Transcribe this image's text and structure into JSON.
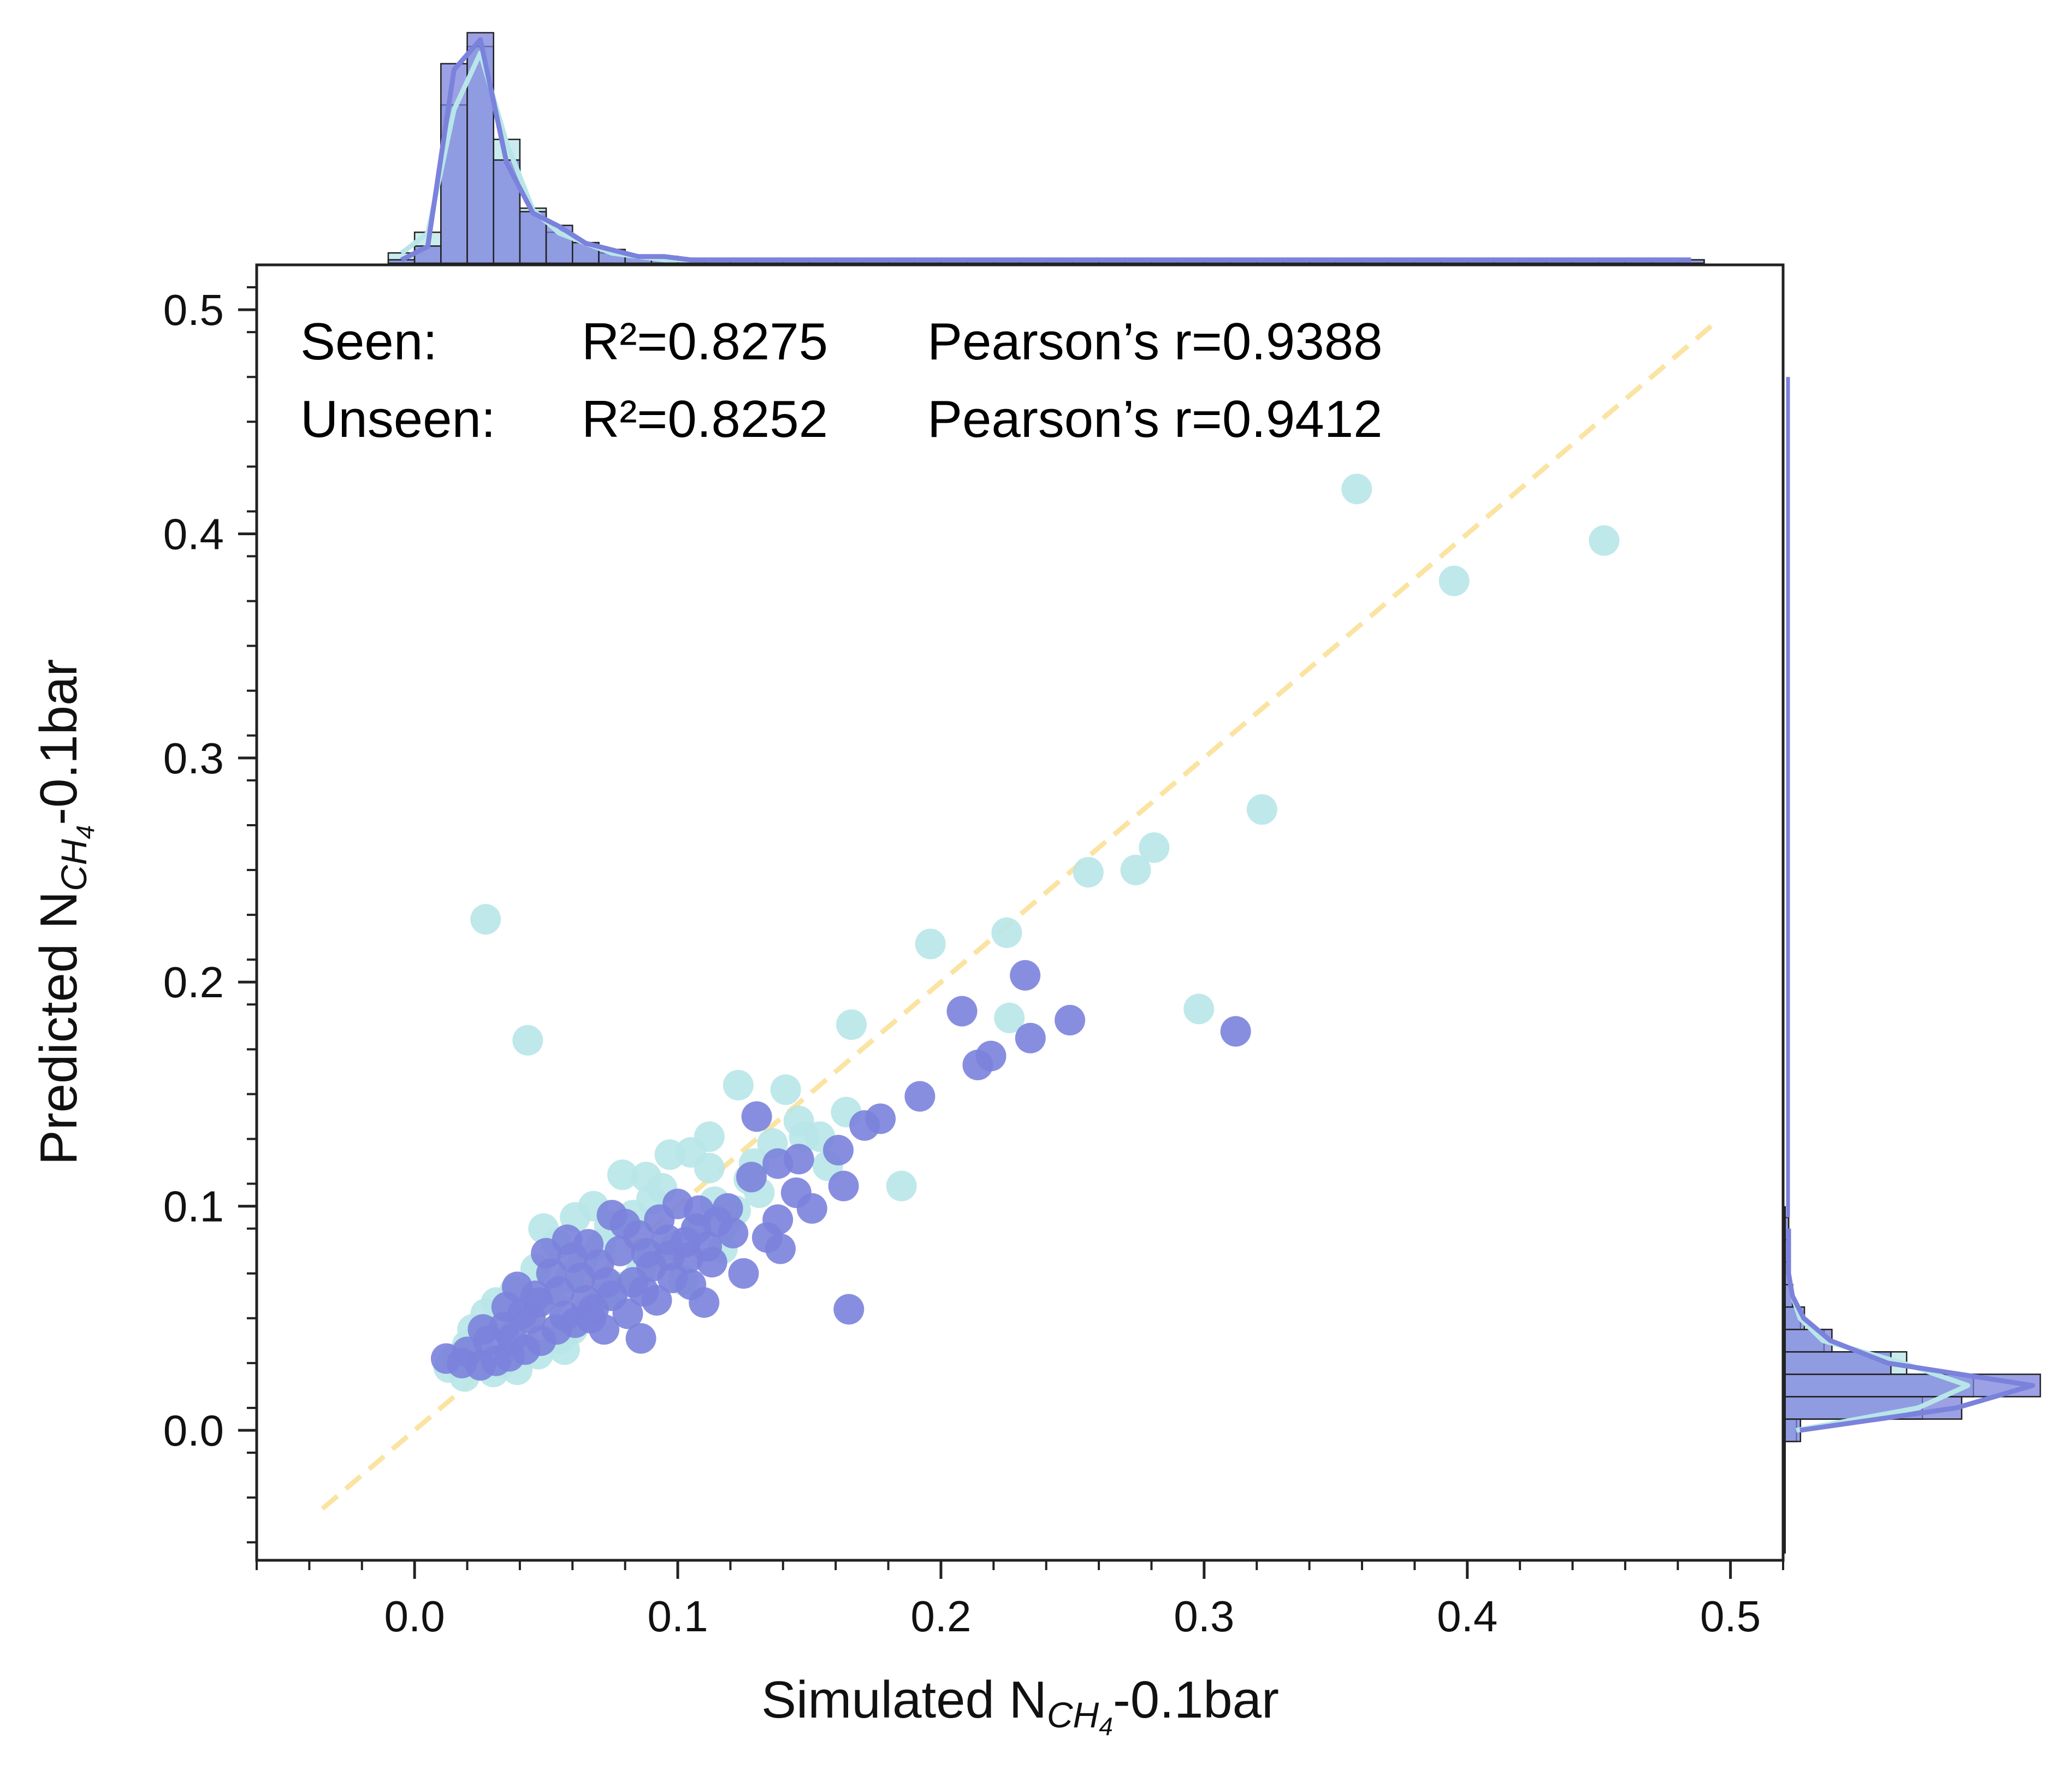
{
  "chart_data": {
    "type": "scatter",
    "title": "",
    "xlabel": {
      "prefix": "Simulated N",
      "sub": "CH",
      "subsub": "4",
      "suffix": "-0.1bar"
    },
    "ylabel": {
      "prefix": "Predicted N",
      "sub": "CH",
      "subsub": "4",
      "suffix": "-0.1bar"
    },
    "xlim": [
      -0.06,
      0.52
    ],
    "ylim": [
      -0.058,
      0.52
    ],
    "xticks": [
      0.0,
      0.1,
      0.2,
      0.3,
      0.4,
      0.5
    ],
    "xtick_labels": [
      "0.0",
      "0.1",
      "0.2",
      "0.3",
      "0.4",
      "0.5"
    ],
    "yticks": [
      0.0,
      0.1,
      0.2,
      0.3,
      0.4,
      0.5
    ],
    "ytick_labels": [
      "0.0",
      "0.1",
      "0.2",
      "0.3",
      "0.4",
      "0.5"
    ],
    "reference_line": {
      "type": "y=x",
      "x": [
        -0.035,
        0.495
      ],
      "color": "#fbe3a1"
    },
    "annotations": [
      {
        "label": "Seen:",
        "r2": "R²=0.8275",
        "pearson": "Pearson’s r=0.9388"
      },
      {
        "label": "Unseen:",
        "r2": "R²=0.8252",
        "pearson": "Pearson’s r=0.9412"
      }
    ],
    "series": [
      {
        "name": "Unseen",
        "color": "#b8e6e8",
        "points": [
          [
            0.358,
            0.42
          ],
          [
            0.452,
            0.397
          ],
          [
            0.395,
            0.379
          ],
          [
            0.322,
            0.277
          ],
          [
            0.281,
            0.26
          ],
          [
            0.256,
            0.249
          ],
          [
            0.274,
            0.25
          ],
          [
            0.027,
            0.228
          ],
          [
            0.225,
            0.222
          ],
          [
            0.196,
            0.217
          ],
          [
            0.166,
            0.181
          ],
          [
            0.226,
            0.184
          ],
          [
            0.298,
            0.188
          ],
          [
            0.043,
            0.174
          ],
          [
            0.185,
            0.109
          ],
          [
            0.123,
            0.154
          ],
          [
            0.141,
            0.152
          ],
          [
            0.164,
            0.142
          ],
          [
            0.157,
            0.118
          ],
          [
            0.112,
            0.131
          ],
          [
            0.105,
            0.124
          ],
          [
            0.088,
            0.113
          ],
          [
            0.079,
            0.114
          ],
          [
            0.094,
            0.108
          ],
          [
            0.097,
            0.123
          ],
          [
            0.136,
            0.128
          ],
          [
            0.148,
            0.131
          ],
          [
            0.114,
            0.102
          ],
          [
            0.122,
            0.098
          ],
          [
            0.131,
            0.106
          ],
          [
            0.061,
            0.095
          ],
          [
            0.049,
            0.09
          ],
          [
            0.068,
            0.1
          ],
          [
            0.054,
            0.083
          ],
          [
            0.046,
            0.072
          ],
          [
            0.074,
            0.091
          ],
          [
            0.083,
            0.096
          ],
          [
            0.038,
            0.062
          ],
          [
            0.031,
            0.057
          ],
          [
            0.027,
            0.052
          ],
          [
            0.042,
            0.048
          ],
          [
            0.022,
            0.045
          ],
          [
            0.02,
            0.038
          ],
          [
            0.015,
            0.032
          ],
          [
            0.013,
            0.028
          ],
          [
            0.019,
            0.024
          ],
          [
            0.03,
            0.026
          ],
          [
            0.047,
            0.034
          ],
          [
            0.055,
            0.041
          ],
          [
            0.065,
            0.052
          ],
          [
            0.072,
            0.06
          ],
          [
            0.086,
            0.071
          ],
          [
            0.099,
            0.082
          ],
          [
            0.118,
            0.092
          ],
          [
            0.127,
            0.112
          ],
          [
            0.117,
            0.081
          ],
          [
            0.102,
            0.067
          ],
          [
            0.09,
            0.078
          ],
          [
            0.059,
            0.068
          ],
          [
            0.037,
            0.042
          ],
          [
            0.025,
            0.035
          ],
          [
            0.033,
            0.03
          ],
          [
            0.06,
            0.045
          ],
          [
            0.077,
            0.064
          ],
          [
            0.052,
            0.058
          ],
          [
            0.107,
            0.089
          ],
          [
            0.112,
            0.117
          ],
          [
            0.09,
            0.103
          ],
          [
            0.071,
            0.083
          ],
          [
            0.064,
            0.076
          ],
          [
            0.154,
            0.131
          ],
          [
            0.146,
            0.138
          ],
          [
            0.129,
            0.119
          ],
          [
            0.057,
            0.036
          ],
          [
            0.039,
            0.027
          ]
        ]
      },
      {
        "name": "Seen",
        "color": "#7b82dc",
        "points": [
          [
            0.232,
            0.203
          ],
          [
            0.208,
            0.187
          ],
          [
            0.249,
            0.183
          ],
          [
            0.312,
            0.178
          ],
          [
            0.219,
            0.167
          ],
          [
            0.234,
            0.175
          ],
          [
            0.214,
            0.163
          ],
          [
            0.192,
            0.149
          ],
          [
            0.165,
            0.054
          ],
          [
            0.177,
            0.139
          ],
          [
            0.171,
            0.136
          ],
          [
            0.13,
            0.14
          ],
          [
            0.161,
            0.125
          ],
          [
            0.146,
            0.121
          ],
          [
            0.138,
            0.119
          ],
          [
            0.128,
            0.113
          ],
          [
            0.145,
            0.106
          ],
          [
            0.163,
            0.109
          ],
          [
            0.151,
            0.099
          ],
          [
            0.138,
            0.094
          ],
          [
            0.134,
            0.086
          ],
          [
            0.125,
            0.07
          ],
          [
            0.11,
            0.057
          ],
          [
            0.139,
            0.081
          ],
          [
            0.119,
            0.099
          ],
          [
            0.107,
            0.09
          ],
          [
            0.115,
            0.093
          ],
          [
            0.103,
            0.084
          ],
          [
            0.097,
            0.078
          ],
          [
            0.09,
            0.073
          ],
          [
            0.083,
            0.066
          ],
          [
            0.075,
            0.06
          ],
          [
            0.068,
            0.054
          ],
          [
            0.061,
            0.048
          ],
          [
            0.054,
            0.045
          ],
          [
            0.048,
            0.04
          ],
          [
            0.042,
            0.036
          ],
          [
            0.036,
            0.033
          ],
          [
            0.031,
            0.031
          ],
          [
            0.025,
            0.029
          ],
          [
            0.018,
            0.03
          ],
          [
            0.012,
            0.032
          ],
          [
            0.02,
            0.035
          ],
          [
            0.028,
            0.04
          ],
          [
            0.034,
            0.046
          ],
          [
            0.041,
            0.052
          ],
          [
            0.047,
            0.057
          ],
          [
            0.055,
            0.062
          ],
          [
            0.063,
            0.068
          ],
          [
            0.07,
            0.074
          ],
          [
            0.078,
            0.08
          ],
          [
            0.085,
            0.087
          ],
          [
            0.093,
            0.094
          ],
          [
            0.1,
            0.101
          ],
          [
            0.108,
            0.098
          ],
          [
            0.075,
            0.096
          ],
          [
            0.08,
            0.092
          ],
          [
            0.06,
            0.077
          ],
          [
            0.052,
            0.07
          ],
          [
            0.039,
            0.064
          ],
          [
            0.046,
            0.06
          ],
          [
            0.072,
            0.045
          ],
          [
            0.086,
            0.041
          ],
          [
            0.081,
            0.052
          ],
          [
            0.092,
            0.058
          ],
          [
            0.058,
            0.085
          ],
          [
            0.066,
            0.083
          ],
          [
            0.05,
            0.079
          ],
          [
            0.035,
            0.055
          ],
          [
            0.026,
            0.045
          ],
          [
            0.098,
            0.068
          ],
          [
            0.105,
            0.065
          ],
          [
            0.113,
            0.075
          ],
          [
            0.121,
            0.088
          ],
          [
            0.087,
            0.062
          ],
          [
            0.065,
            0.058
          ],
          [
            0.073,
            0.066
          ],
          [
            0.044,
            0.05
          ],
          [
            0.037,
            0.041
          ],
          [
            0.057,
            0.051
          ],
          [
            0.067,
            0.05
          ],
          [
            0.088,
            0.079
          ],
          [
            0.096,
            0.085
          ],
          [
            0.104,
            0.077
          ],
          [
            0.111,
            0.082
          ]
        ]
      }
    ],
    "marginal_x_histogram": {
      "bins": [
        -0.01,
        0.0,
        0.01,
        0.02,
        0.03,
        0.04,
        0.05,
        0.06,
        0.07,
        0.08,
        0.09,
        0.1,
        0.11,
        0.12,
        0.13,
        0.14,
        0.15,
        0.16,
        0.17,
        0.18,
        0.19,
        0.2,
        0.21,
        0.22,
        0.23,
        0.24,
        0.25,
        0.26,
        0.27,
        0.28,
        0.29,
        0.3,
        0.31,
        0.32,
        0.33,
        0.34,
        0.35,
        0.36,
        0.37,
        0.38,
        0.39,
        0.4,
        0.41,
        0.42,
        0.43,
        0.44,
        0.45,
        0.46,
        0.47,
        0.48,
        0.49,
        0.5
      ],
      "seen": [
        1,
        5,
        58,
        67,
        30,
        15,
        11,
        6,
        4,
        2,
        2,
        1,
        1,
        1,
        1,
        1,
        1,
        1,
        1,
        1,
        1,
        1,
        1,
        1,
        1,
        1,
        1,
        1,
        1,
        1,
        1,
        1,
        1,
        1,
        1,
        1,
        1,
        1,
        1,
        1,
        1,
        1,
        1,
        1,
        1,
        1,
        1,
        1,
        1,
        1
      ],
      "unseen": [
        3,
        9,
        46,
        63,
        36,
        16,
        9,
        6,
        3,
        2,
        1,
        1,
        1,
        1,
        1,
        1,
        1,
        1,
        1,
        1,
        1,
        1,
        1,
        1,
        1,
        1,
        1,
        1,
        1,
        1,
        1,
        1,
        1,
        1,
        1,
        1,
        1,
        1,
        1,
        1,
        1,
        1,
        1,
        1,
        1,
        1,
        1,
        1,
        1,
        1
      ]
    },
    "marginal_y_histogram": {
      "bins": [
        -0.005,
        0.005,
        0.015,
        0.025,
        0.035,
        0.045,
        0.055,
        0.065,
        0.075,
        0.085,
        0.095
      ],
      "seen": [
        4,
        45,
        65,
        27,
        12,
        5,
        2,
        1,
        1,
        1
      ],
      "unseen": [
        3,
        35,
        48,
        31,
        10,
        4,
        2,
        1,
        1,
        1
      ]
    }
  }
}
